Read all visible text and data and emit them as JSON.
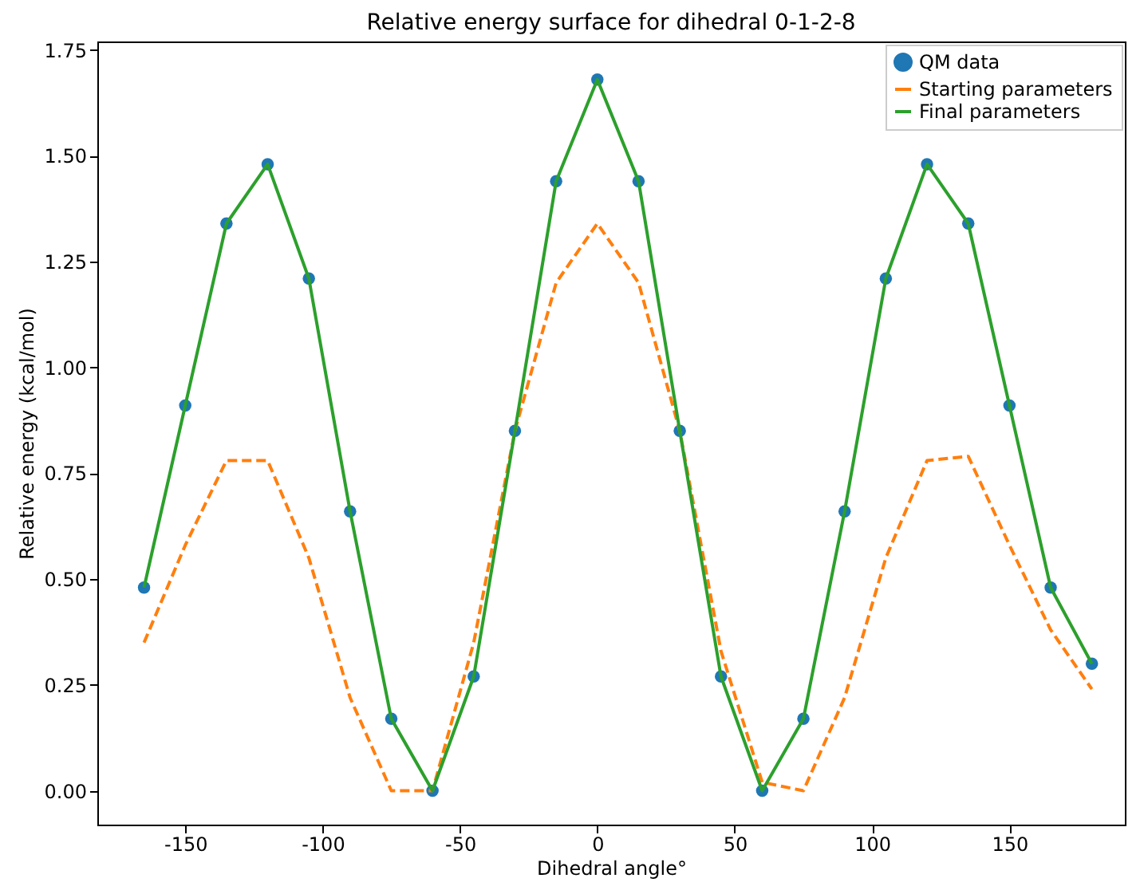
{
  "chart_data": {
    "type": "line",
    "title": "Relative energy surface for dihedral 0-1-2-8",
    "xlabel": "Dihedral angle°",
    "ylabel": "Relative energy (kcal/mol)",
    "x": [
      -165,
      -150,
      -135,
      -120,
      -105,
      -90,
      -75,
      -60,
      -45,
      -30,
      -15,
      0,
      15,
      30,
      45,
      60,
      75,
      90,
      105,
      120,
      135,
      150,
      165,
      180
    ],
    "series": [
      {
        "name": "QM data",
        "type": "scatter",
        "marker": "circle",
        "color": "#1f77b4",
        "values": [
          0.48,
          0.91,
          1.34,
          1.48,
          1.21,
          0.66,
          0.17,
          0.0,
          0.27,
          0.85,
          1.44,
          1.68,
          1.44,
          0.85,
          0.27,
          0.0,
          0.17,
          0.66,
          1.21,
          1.48,
          1.34,
          0.91,
          0.48,
          0.3
        ]
      },
      {
        "name": "Starting parameters",
        "line_style": "dashed",
        "color": "#ff7f0e",
        "values": [
          0.35,
          0.58,
          0.78,
          0.78,
          0.55,
          0.22,
          0.0,
          0.0,
          0.35,
          0.85,
          1.2,
          1.34,
          1.2,
          0.85,
          0.33,
          0.02,
          0.0,
          0.22,
          0.55,
          0.78,
          0.79,
          0.58,
          0.38,
          0.24
        ]
      },
      {
        "name": "Final parameters",
        "line_style": "solid",
        "color": "#2ca02c",
        "values": [
          0.48,
          0.91,
          1.34,
          1.48,
          1.21,
          0.66,
          0.17,
          0.0,
          0.27,
          0.85,
          1.44,
          1.68,
          1.44,
          0.85,
          0.27,
          0.0,
          0.17,
          0.66,
          1.21,
          1.48,
          1.34,
          0.91,
          0.48,
          0.3
        ]
      }
    ],
    "xlim": [
      -182,
      192
    ],
    "ylim": [
      -0.08,
      1.77
    ],
    "xticks": [
      -150,
      -100,
      -50,
      0,
      50,
      100,
      150
    ],
    "yticks": [
      {
        "value": 0,
        "label": "0.00"
      },
      0.25,
      {
        "value": 0.5,
        "label": "0.50"
      },
      0.75,
      {
        "value": 1,
        "label": "1.00"
      },
      1.25,
      {
        "value": 1.5,
        "label": "1.50"
      },
      1.75
    ],
    "grid": false,
    "legend": "top right"
  }
}
